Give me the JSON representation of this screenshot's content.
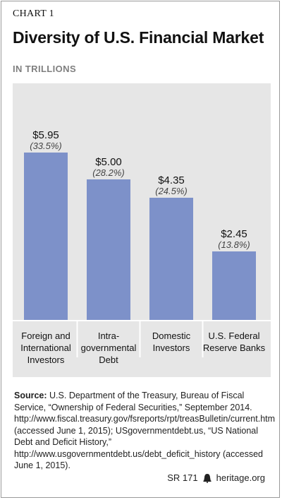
{
  "header": {
    "chart_label": "CHART 1",
    "title": "Diversity of U.S. Financial Market",
    "subtitle": "IN TRILLIONS"
  },
  "chart_data": {
    "type": "bar",
    "categories": [
      [
        "Foreign and",
        "International",
        "Investors"
      ],
      [
        "Intra-",
        "governmental",
        "Debt"
      ],
      [
        "Domestic",
        "Investors"
      ],
      [
        "U.S. Federal",
        "Reserve Banks"
      ]
    ],
    "values": [
      5.95,
      5.0,
      4.35,
      2.45
    ],
    "value_labels": [
      "$5.95",
      "$5.00",
      "$4.35",
      "$2.45"
    ],
    "percent_labels": [
      "(33.5%)",
      "(28.2%)",
      "(24.5%)",
      "(13.8%)"
    ],
    "title": "Diversity of U.S. Financial Market",
    "ylabel": "IN TRILLIONS",
    "ylim": [
      0,
      7
    ],
    "grid": false,
    "bar_color": "#7d91c9"
  },
  "source": {
    "label": "Source:",
    "text": "U.S. Department of the Treasury, Bureau of Fiscal Service, “Ownership of Federal Securities,” September 2014. http://www.fiscal.treasury.gov/fsreports/rpt/treasBulletin/current.htm (accessed June 1, 2015); USgovernmentdebt.us, “US National Debt and Deficit History,” http://www.usgovernmentdebt.us/debt_deficit_history (accessed June 1, 2015)."
  },
  "footer": {
    "report_id": "SR 171",
    "site": "heritage.org",
    "logo_icon": "liberty-bell-icon"
  }
}
